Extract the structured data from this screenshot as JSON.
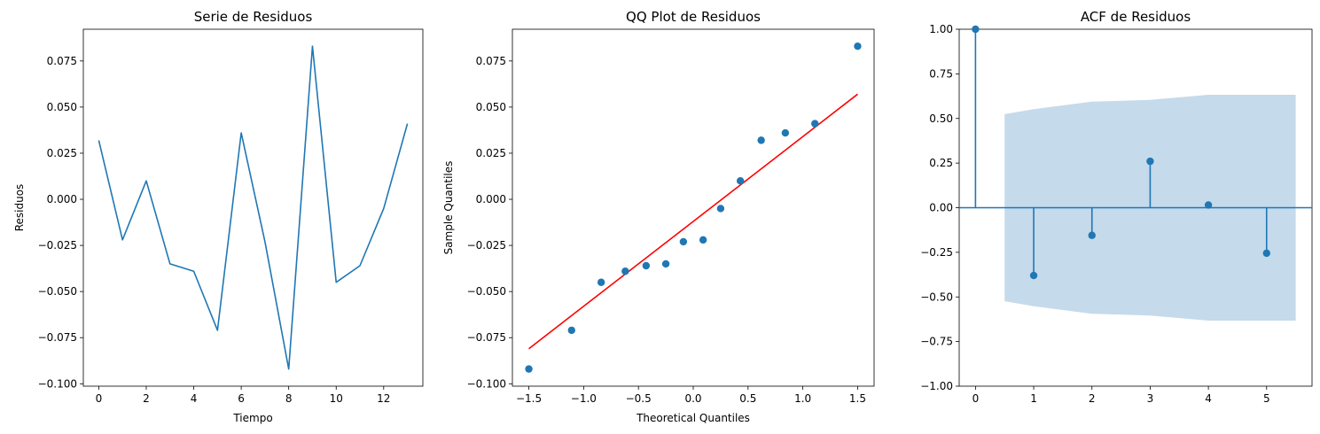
{
  "chart_data": [
    {
      "type": "line",
      "title": "Serie de Residuos",
      "xlabel": "Tiempo",
      "ylabel": "Residuos",
      "xlim": [
        -0.65,
        13.65
      ],
      "ylim": [
        -0.1013,
        0.0922
      ],
      "xticks": [
        0,
        2,
        4,
        6,
        8,
        10,
        12
      ],
      "yticks": [
        -0.1,
        -0.075,
        -0.05,
        -0.025,
        0.0,
        0.025,
        0.05,
        0.075
      ],
      "ytick_labels": [
        "−0.100",
        "−0.075",
        "−0.050",
        "−0.025",
        "0.000",
        "0.025",
        "0.050",
        "0.075"
      ],
      "grid": false,
      "color": "#1f77b4",
      "x": [
        0,
        1,
        2,
        3,
        4,
        5,
        6,
        7,
        8,
        9,
        10,
        11,
        12,
        13
      ],
      "y": [
        0.032,
        -0.022,
        0.01,
        -0.035,
        -0.039,
        -0.071,
        0.036,
        -0.023,
        -0.092,
        0.083,
        -0.045,
        -0.036,
        -0.005,
        0.041
      ]
    },
    {
      "type": "scatter",
      "title": "QQ Plot de Residuos",
      "xlabel": "Theoretical Quantiles",
      "ylabel": "Sample Quantiles",
      "xlim": [
        -1.65,
        1.65
      ],
      "ylim": [
        -0.1013,
        0.0922
      ],
      "xticks": [
        -1.5,
        -1.0,
        -0.5,
        0.0,
        0.5,
        1.0,
        1.5
      ],
      "xtick_labels": [
        "−1.5",
        "−1.0",
        "−0.5",
        "0.0",
        "0.5",
        "1.0",
        "1.5"
      ],
      "yticks": [
        -0.1,
        -0.075,
        -0.05,
        -0.025,
        0.0,
        0.025,
        0.05,
        0.075
      ],
      "ytick_labels": [
        "−0.100",
        "−0.075",
        "−0.050",
        "−0.025",
        "0.000",
        "0.025",
        "0.050",
        "0.075"
      ],
      "grid": false,
      "color": "#1f77b4",
      "line_color": "#ff0000",
      "x": [
        -1.5,
        -1.11,
        -0.84,
        -0.62,
        -0.43,
        -0.25,
        -0.09,
        0.09,
        0.25,
        0.43,
        0.62,
        0.84,
        1.11,
        1.5
      ],
      "y": [
        -0.092,
        -0.071,
        -0.045,
        -0.039,
        -0.036,
        -0.035,
        -0.023,
        -0.022,
        -0.005,
        0.01,
        0.032,
        0.036,
        0.041,
        0.083
      ],
      "reference_line": {
        "x": [
          -1.5,
          1.5
        ],
        "y": [
          -0.081,
          0.057
        ]
      }
    },
    {
      "type": "bar",
      "title": "ACF de Residuos",
      "xlabel": "",
      "ylabel": "",
      "xlim": [
        -0.28,
        5.78
      ],
      "ylim": [
        -1.0,
        1.0
      ],
      "xticks": [
        0,
        1,
        2,
        3,
        4,
        5
      ],
      "yticks": [
        -1.0,
        -0.75,
        -0.5,
        -0.25,
        0.0,
        0.25,
        0.5,
        0.75,
        1.0
      ],
      "ytick_labels": [
        "−1.00",
        "−0.75",
        "−0.50",
        "−0.25",
        "0.00",
        "0.25",
        "0.50",
        "0.75",
        "1.00"
      ],
      "grid": false,
      "color": "#1f77b4",
      "band_color": "#c5daeb",
      "lags": [
        0,
        1,
        2,
        3,
        4,
        5
      ],
      "values": [
        1.0,
        -0.38,
        -0.155,
        0.26,
        0.015,
        -0.255
      ],
      "confidence_band": {
        "x": [
          0.5,
          1.0,
          2.0,
          3.0,
          4.0,
          5.5
        ],
        "upper": [
          0.524,
          0.552,
          0.594,
          0.604,
          0.633,
          0.633
        ]
      }
    }
  ]
}
